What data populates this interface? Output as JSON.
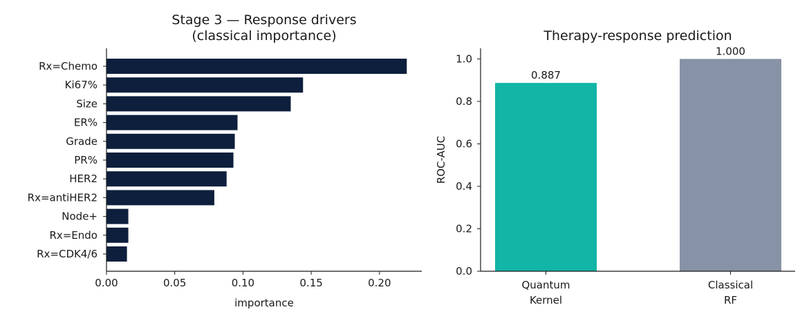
{
  "chart_data": [
    {
      "type": "bar",
      "orientation": "horizontal",
      "title_lines": [
        "Stage 3 — Response drivers",
        "(classical importance)"
      ],
      "xlabel": "importance",
      "ylabel": "",
      "categories": [
        "Rx=Chemo",
        "Ki67%",
        "Size",
        "ER%",
        "Grade",
        "PR%",
        "HER2",
        "Rx=antiHER2",
        "Node+",
        "Rx=Endo",
        "Rx=CDK4/6"
      ],
      "values": [
        0.22,
        0.144,
        0.135,
        0.096,
        0.094,
        0.093,
        0.088,
        0.079,
        0.016,
        0.016,
        0.015
      ],
      "xlim": [
        0,
        0.231
      ],
      "xticks": [
        "0.00",
        "0.05",
        "0.10",
        "0.15",
        "0.20"
      ],
      "bar_color": "#0d1f3c",
      "grid": false
    },
    {
      "type": "bar",
      "orientation": "vertical",
      "title_lines": [
        "Therapy-response prediction"
      ],
      "xlabel": "",
      "ylabel": "ROC-AUC",
      "categories": [
        [
          "Quantum",
          "Kernel"
        ],
        [
          "Classical",
          "RF"
        ]
      ],
      "values": [
        0.887,
        1.0
      ],
      "data_labels": [
        "0.887",
        "1.000"
      ],
      "ylim": [
        0,
        1.05
      ],
      "yticks": [
        "0.0",
        "0.2",
        "0.4",
        "0.6",
        "0.8",
        "1.0"
      ],
      "bar_colors": [
        "#12b5a6",
        "#8892a6"
      ],
      "grid": false
    }
  ]
}
